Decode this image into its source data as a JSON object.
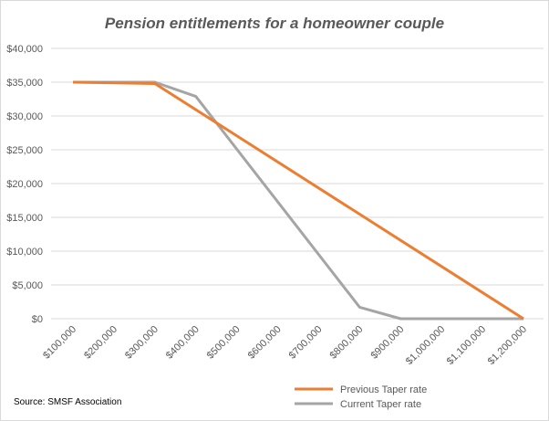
{
  "chart_data": {
    "type": "line",
    "title": "Pension entitlements for a homeowner couple",
    "xlabel": "",
    "ylabel": "",
    "categories": [
      "$100,000",
      "$200,000",
      "$300,000",
      "$400,000",
      "$500,000",
      "$600,000",
      "$700,000",
      "$800,000",
      "$900,000",
      "$1,000,000",
      "$1,100,000",
      "$1,200,000"
    ],
    "x_values": [
      100000,
      200000,
      300000,
      400000,
      500000,
      600000,
      700000,
      800000,
      900000,
      1000000,
      1100000,
      1200000
    ],
    "ylim": [
      0,
      40000
    ],
    "yticks": [
      0,
      5000,
      10000,
      15000,
      20000,
      25000,
      30000,
      35000,
      40000
    ],
    "ytick_labels": [
      "$0",
      "$5,000",
      "$10,000",
      "$15,000",
      "$20,000",
      "$25,000",
      "$30,000",
      "$35,000",
      "$40,000"
    ],
    "grid": "horizontal",
    "legend_position": "bottom-right",
    "series": [
      {
        "name": "Previous Taper rate",
        "color": "#ED7D31",
        "points": [
          [
            100000,
            35000
          ],
          [
            300000,
            34800
          ],
          [
            1200000,
            0
          ]
        ]
      },
      {
        "name": "Current Taper rate",
        "color": "#A5A5A5",
        "points": [
          [
            100000,
            35000
          ],
          [
            300000,
            35000
          ],
          [
            400000,
            32900
          ],
          [
            800000,
            1700
          ],
          [
            900000,
            0
          ],
          [
            1200000,
            0
          ]
        ]
      }
    ],
    "source": "Source: SMSF Association"
  }
}
